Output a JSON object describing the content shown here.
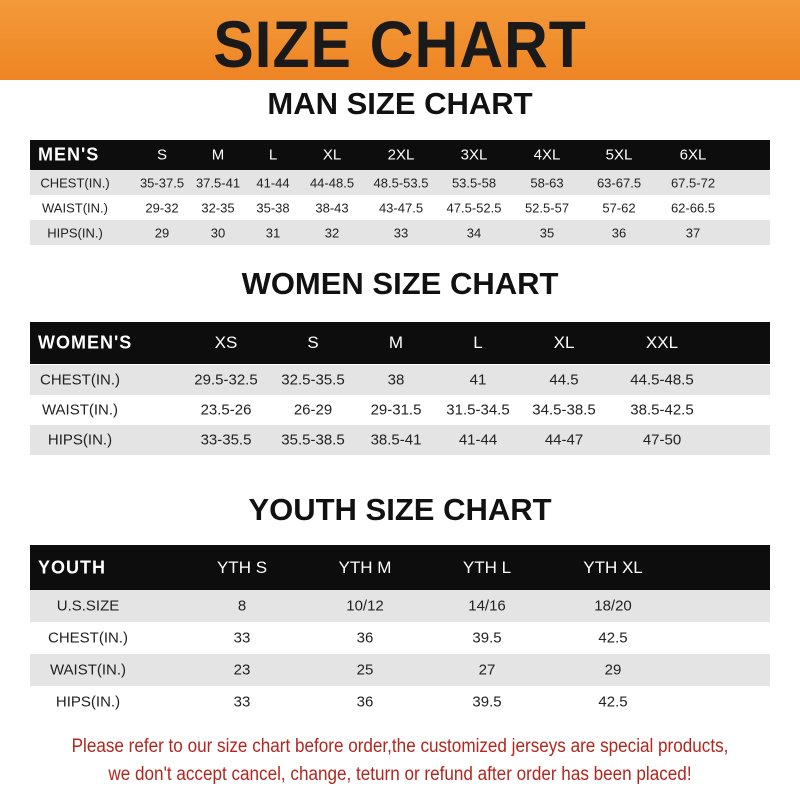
{
  "title": "SIZE CHART",
  "colors": {
    "banner": "#ee8423",
    "header_row": "#0d0d0d",
    "stripe": "#e4e4e4",
    "note": "#b3261e"
  },
  "men": {
    "title": "MAN SIZE CHART",
    "label": "MEN'S",
    "sizes": [
      "S",
      "M",
      "L",
      "XL",
      "2XL",
      "3XL",
      "4XL",
      "5XL",
      "6XL"
    ],
    "rows": [
      {
        "label": "CHEST(IN.)",
        "values": [
          "35-37.5",
          "37.5-41",
          "41-44",
          "44-48.5",
          "48.5-53.5",
          "53.5-58",
          "58-63",
          "63-67.5",
          "67.5-72"
        ]
      },
      {
        "label": "WAIST(IN.)",
        "values": [
          "29-32",
          "32-35",
          "35-38",
          "38-43",
          "43-47.5",
          "47.5-52.5",
          "52.5-57",
          "57-62",
          "62-66.5"
        ]
      },
      {
        "label": "HIPS(IN.)",
        "values": [
          "29",
          "30",
          "31",
          "32",
          "33",
          "34",
          "35",
          "36",
          "37"
        ]
      }
    ]
  },
  "women": {
    "title": "WOMEN SIZE CHART",
    "label": "WOMEN'S",
    "sizes": [
      "XS",
      "S",
      "M",
      "L",
      "XL",
      "XXL"
    ],
    "rows": [
      {
        "label": "CHEST(IN.)",
        "values": [
          "29.5-32.5",
          "32.5-35.5",
          "38",
          "41",
          "44.5",
          "44.5-48.5"
        ]
      },
      {
        "label": "WAIST(IN.)",
        "values": [
          "23.5-26",
          "26-29",
          "29-31.5",
          "31.5-34.5",
          "34.5-38.5",
          "38.5-42.5"
        ]
      },
      {
        "label": "HIPS(IN.)",
        "values": [
          "33-35.5",
          "35.5-38.5",
          "38.5-41",
          "41-44",
          "44-47",
          "47-50"
        ]
      }
    ]
  },
  "youth": {
    "title": "YOUTH SIZE CHART",
    "label": "YOUTH",
    "sizes": [
      "YTH S",
      "YTH M",
      "YTH L",
      "YTH XL"
    ],
    "rows": [
      {
        "label": "U.S.SIZE",
        "values": [
          "8",
          "10/12",
          "14/16",
          "18/20"
        ]
      },
      {
        "label": "CHEST(IN.)",
        "values": [
          "33",
          "36",
          "39.5",
          "42.5"
        ]
      },
      {
        "label": "WAIST(IN.)",
        "values": [
          "23",
          "25",
          "27",
          "29"
        ]
      },
      {
        "label": "HIPS(IN.)",
        "values": [
          "33",
          "36",
          "39.5",
          "42.5"
        ]
      }
    ]
  },
  "note": {
    "line1": "Please refer to our size chart before order,the customized jerseys are special products,",
    "line2": "we don't accept cancel, change, teturn or refund after order has been placed!"
  }
}
